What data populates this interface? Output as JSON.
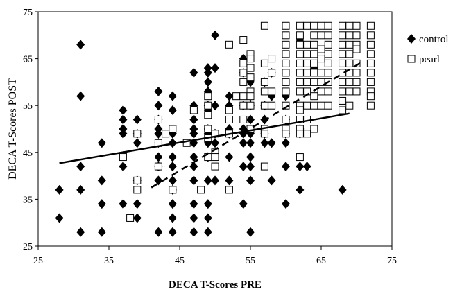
{
  "chart_data": {
    "type": "scatter",
    "xlabel": "DECA T-Scores PRE",
    "ylabel": "DECA T-Scores POST",
    "xlim": [
      25,
      75
    ],
    "ylim": [
      25,
      75
    ],
    "xticks": [
      "25",
      "35",
      "45",
      "55",
      "65",
      "75"
    ],
    "yticks": [
      "25",
      "35",
      "45",
      "55",
      "65",
      "75"
    ],
    "legend_position": "right-top",
    "series": [
      {
        "name": "control",
        "marker": "filled-diamond",
        "color": "#000000",
        "points": [
          [
            28,
            37
          ],
          [
            28,
            31
          ],
          [
            31,
            68
          ],
          [
            31,
            57
          ],
          [
            31,
            42
          ],
          [
            31,
            37
          ],
          [
            31,
            28
          ],
          [
            34,
            47
          ],
          [
            34,
            39
          ],
          [
            34,
            34
          ],
          [
            34,
            28
          ],
          [
            37,
            54
          ],
          [
            37,
            52
          ],
          [
            37,
            50
          ],
          [
            37,
            49
          ],
          [
            37,
            42
          ],
          [
            37,
            34
          ],
          [
            39,
            52
          ],
          [
            39,
            49
          ],
          [
            39,
            47
          ],
          [
            39,
            39
          ],
          [
            39,
            34
          ],
          [
            39,
            31
          ],
          [
            42,
            58
          ],
          [
            42,
            55
          ],
          [
            42,
            52
          ],
          [
            42,
            50
          ],
          [
            42,
            49
          ],
          [
            42,
            47
          ],
          [
            42,
            44
          ],
          [
            42,
            42
          ],
          [
            42,
            39
          ],
          [
            42,
            28
          ],
          [
            44,
            57
          ],
          [
            44,
            54
          ],
          [
            44,
            49
          ],
          [
            44,
            47
          ],
          [
            44,
            44
          ],
          [
            44,
            42
          ],
          [
            44,
            39
          ],
          [
            44,
            37
          ],
          [
            44,
            34
          ],
          [
            44,
            31
          ],
          [
            44,
            28
          ],
          [
            47,
            62
          ],
          [
            47,
            55
          ],
          [
            47,
            52
          ],
          [
            47,
            50
          ],
          [
            47,
            49
          ],
          [
            47,
            47
          ],
          [
            47,
            44
          ],
          [
            47,
            42
          ],
          [
            47,
            39
          ],
          [
            47,
            34
          ],
          [
            47,
            31
          ],
          [
            47,
            28
          ],
          [
            49,
            63
          ],
          [
            49,
            62
          ],
          [
            49,
            60
          ],
          [
            49,
            58
          ],
          [
            49,
            55
          ],
          [
            49,
            54
          ],
          [
            49,
            50
          ],
          [
            49,
            49
          ],
          [
            49,
            47
          ],
          [
            49,
            44
          ],
          [
            49,
            39
          ],
          [
            49,
            34
          ],
          [
            49,
            31
          ],
          [
            49,
            28
          ],
          [
            50,
            70
          ],
          [
            50,
            63
          ],
          [
            50,
            55
          ],
          [
            50,
            49
          ],
          [
            50,
            47
          ],
          [
            50,
            39
          ],
          [
            52,
            57
          ],
          [
            52,
            55
          ],
          [
            52,
            50
          ],
          [
            52,
            49
          ],
          [
            52,
            44
          ],
          [
            52,
            39
          ],
          [
            54,
            65
          ],
          [
            54,
            62
          ],
          [
            54,
            55
          ],
          [
            54,
            50
          ],
          [
            54,
            49
          ],
          [
            54,
            47
          ],
          [
            54,
            42
          ],
          [
            54,
            34
          ],
          [
            55,
            60
          ],
          [
            55,
            57
          ],
          [
            55,
            55
          ],
          [
            55,
            52
          ],
          [
            55,
            49
          ],
          [
            55,
            47
          ],
          [
            55,
            44
          ],
          [
            55,
            42
          ],
          [
            55,
            39
          ],
          [
            55,
            28
          ],
          [
            57,
            55
          ],
          [
            57,
            52
          ],
          [
            57,
            49
          ],
          [
            57,
            47
          ],
          [
            57,
            60
          ],
          [
            58,
            62
          ],
          [
            58,
            57
          ],
          [
            58,
            47
          ],
          [
            58,
            39
          ],
          [
            60,
            57
          ],
          [
            60,
            52
          ],
          [
            60,
            49
          ],
          [
            60,
            47
          ],
          [
            60,
            42
          ],
          [
            60,
            34
          ],
          [
            62,
            69
          ],
          [
            62,
            50
          ],
          [
            62,
            49
          ],
          [
            62,
            42
          ],
          [
            62,
            37
          ],
          [
            63,
            42
          ],
          [
            64,
            63
          ],
          [
            68,
            37
          ]
        ]
      },
      {
        "name": "pearl",
        "marker": "hollow-square",
        "color": "#000000",
        "points": [
          [
            37,
            44
          ],
          [
            38,
            31
          ],
          [
            39,
            39
          ],
          [
            39,
            37
          ],
          [
            39,
            49
          ],
          [
            42,
            52
          ],
          [
            42,
            47
          ],
          [
            42,
            42
          ],
          [
            43,
            49
          ],
          [
            44,
            50
          ],
          [
            44,
            37
          ],
          [
            46,
            47
          ],
          [
            47,
            54
          ],
          [
            48,
            37
          ],
          [
            49,
            57
          ],
          [
            49,
            55
          ],
          [
            49,
            53
          ],
          [
            49,
            50
          ],
          [
            49,
            48
          ],
          [
            49,
            44
          ],
          [
            50,
            49
          ],
          [
            50,
            45
          ],
          [
            50,
            44
          ],
          [
            50,
            42
          ],
          [
            52,
            68
          ],
          [
            52,
            54
          ],
          [
            52,
            52
          ],
          [
            52,
            49
          ],
          [
            52,
            37
          ],
          [
            53,
            57
          ],
          [
            54,
            69
          ],
          [
            54,
            64
          ],
          [
            54,
            62
          ],
          [
            54,
            60
          ],
          [
            54,
            57
          ],
          [
            54,
            55
          ],
          [
            54,
            52
          ],
          [
            55,
            66
          ],
          [
            55,
            65
          ],
          [
            55,
            63
          ],
          [
            55,
            61
          ],
          [
            55,
            58
          ],
          [
            55,
            57
          ],
          [
            55,
            55
          ],
          [
            55,
            50
          ],
          [
            57,
            72
          ],
          [
            57,
            64
          ],
          [
            57,
            60
          ],
          [
            57,
            58
          ],
          [
            57,
            55
          ],
          [
            57,
            50
          ],
          [
            57,
            49
          ],
          [
            57,
            42
          ],
          [
            58,
            65
          ],
          [
            58,
            62
          ],
          [
            58,
            58
          ],
          [
            58,
            55
          ],
          [
            60,
            72
          ],
          [
            60,
            70
          ],
          [
            60,
            68
          ],
          [
            60,
            66
          ],
          [
            60,
            64
          ],
          [
            60,
            62
          ],
          [
            60,
            60
          ],
          [
            60,
            58
          ],
          [
            60,
            55
          ],
          [
            60,
            52
          ],
          [
            60,
            50
          ],
          [
            60,
            49
          ],
          [
            62,
            72
          ],
          [
            62,
            70
          ],
          [
            62,
            68
          ],
          [
            62,
            66
          ],
          [
            62,
            64
          ],
          [
            62,
            62
          ],
          [
            62,
            60
          ],
          [
            62,
            58
          ],
          [
            62,
            55
          ],
          [
            62,
            54
          ],
          [
            62,
            52
          ],
          [
            62,
            50
          ],
          [
            62,
            49
          ],
          [
            62,
            44
          ],
          [
            63,
            72
          ],
          [
            63,
            68
          ],
          [
            63,
            66
          ],
          [
            63,
            64
          ],
          [
            63,
            62
          ],
          [
            63,
            60
          ],
          [
            63,
            58
          ],
          [
            63,
            55
          ],
          [
            63,
            52
          ],
          [
            63,
            49
          ],
          [
            64,
            72
          ],
          [
            64,
            70
          ],
          [
            64,
            68
          ],
          [
            64,
            66
          ],
          [
            64,
            64
          ],
          [
            64,
            62
          ],
          [
            64,
            60
          ],
          [
            64,
            57
          ],
          [
            64,
            55
          ],
          [
            64,
            50
          ],
          [
            65,
            72
          ],
          [
            65,
            70
          ],
          [
            65,
            67
          ],
          [
            65,
            65
          ],
          [
            65,
            62
          ],
          [
            65,
            60
          ],
          [
            65,
            58
          ],
          [
            65,
            55
          ],
          [
            66,
            72
          ],
          [
            66,
            70
          ],
          [
            66,
            68
          ],
          [
            66,
            66
          ],
          [
            66,
            64
          ],
          [
            66,
            62
          ],
          [
            66,
            60
          ],
          [
            66,
            58
          ],
          [
            66,
            55
          ],
          [
            68,
            72
          ],
          [
            68,
            70
          ],
          [
            68,
            68
          ],
          [
            68,
            66
          ],
          [
            68,
            64
          ],
          [
            68,
            62
          ],
          [
            68,
            60
          ],
          [
            68,
            58
          ],
          [
            68,
            56
          ],
          [
            68,
            54
          ],
          [
            69,
            72
          ],
          [
            69,
            70
          ],
          [
            69,
            68
          ],
          [
            69,
            66
          ],
          [
            69,
            64
          ],
          [
            69,
            62
          ],
          [
            69,
            60
          ],
          [
            69,
            58
          ],
          [
            69,
            55
          ],
          [
            70,
            72
          ],
          [
            70,
            70
          ],
          [
            70,
            68
          ],
          [
            70,
            67
          ],
          [
            70,
            64
          ],
          [
            70,
            62
          ],
          [
            70,
            60
          ],
          [
            70,
            58
          ],
          [
            72,
            72
          ],
          [
            72,
            70
          ],
          [
            72,
            68
          ],
          [
            72,
            66
          ],
          [
            72,
            64
          ],
          [
            72,
            62
          ],
          [
            72,
            60
          ],
          [
            72,
            58
          ],
          [
            72,
            57
          ],
          [
            72,
            55
          ]
        ]
      }
    ],
    "trendlines": [
      {
        "series": "control",
        "style": "solid",
        "from": [
          28,
          42.7
        ],
        "to": [
          69,
          53.3
        ]
      },
      {
        "series": "pearl",
        "style": "dashed",
        "from": [
          41,
          37.5
        ],
        "to": [
          71,
          64.5
        ]
      }
    ]
  }
}
